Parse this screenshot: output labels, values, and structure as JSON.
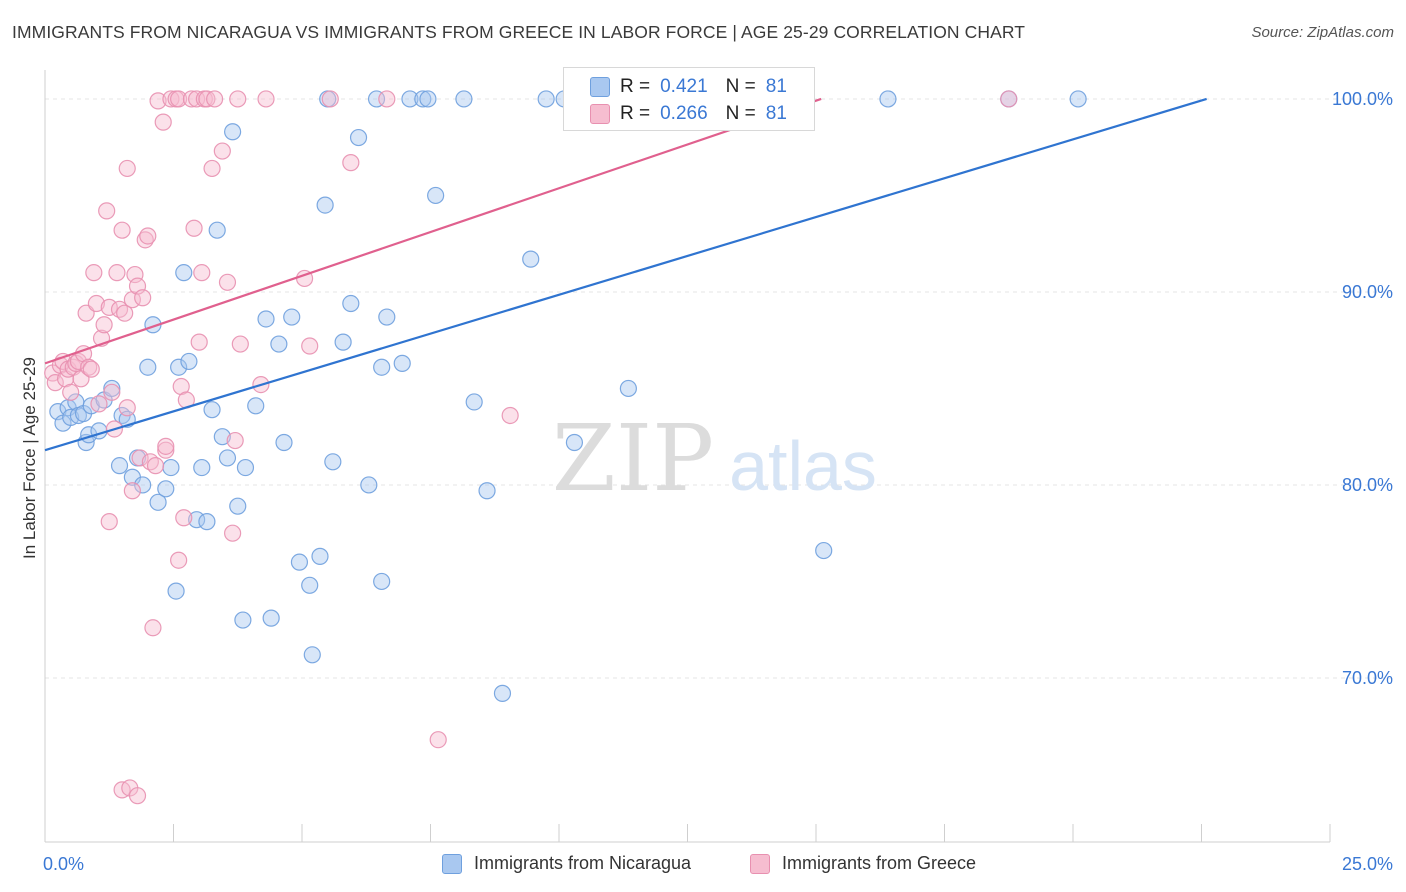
{
  "title": "IMMIGRANTS FROM NICARAGUA VS IMMIGRANTS FROM GREECE IN LABOR FORCE | AGE 25-29 CORRELATION CHART",
  "source": "Source: ZipAtlas.com",
  "watermark": {
    "zip": "ZIP",
    "atlas": "atlas"
  },
  "stats_box": {
    "rows": [
      {
        "r_label": "R =",
        "r_value": "0.421",
        "n_label": "N =",
        "n_value": "81",
        "color": "#a9c8f0",
        "border": "#6fa0de"
      },
      {
        "r_label": "R =",
        "r_value": "0.266",
        "n_label": "N =",
        "n_value": "81",
        "color": "#f6bdd0",
        "border": "#e890b0"
      }
    ]
  },
  "legend": [
    {
      "label": "Immigrants from Nicaragua",
      "color": "#a9c8f0",
      "border": "#6fa0de"
    },
    {
      "label": "Immigrants from Greece",
      "color": "#f6bdd0",
      "border": "#e890b0"
    }
  ],
  "chart_data": {
    "type": "scatter",
    "title": "IMMIGRANTS FROM NICARAGUA VS IMMIGRANTS FROM GREECE IN LABOR FORCE | AGE 25-29 CORRELATION CHART",
    "xlabel": "",
    "ylabel": "In Labor Force | Age 25-29",
    "xlim": [
      0,
      25
    ],
    "ylim": [
      61.5,
      101.5
    ],
    "x_tick_labels": [
      "0.0%",
      "25.0%"
    ],
    "y_ticks": [
      70,
      80,
      90,
      100
    ],
    "y_tick_labels": [
      "70.0%",
      "80.0%",
      "90.0%",
      "100.0%"
    ],
    "series": [
      {
        "name": "Immigrants from Nicaragua",
        "color": "#6fa0de",
        "fill": "#a9c8f0",
        "trend_color": "#2f74d0",
        "trend": {
          "x0": 0,
          "y0": 81.8,
          "x1": 22.6,
          "y1": 100.0
        },
        "points": [
          [
            0.25,
            83.8
          ],
          [
            0.35,
            83.2
          ],
          [
            0.45,
            84.0
          ],
          [
            0.5,
            83.5
          ],
          [
            0.6,
            84.3
          ],
          [
            0.65,
            83.6
          ],
          [
            0.75,
            83.7
          ],
          [
            0.8,
            82.2
          ],
          [
            0.85,
            82.6
          ],
          [
            0.9,
            84.1
          ],
          [
            1.05,
            82.8
          ],
          [
            1.15,
            84.4
          ],
          [
            1.3,
            85.0
          ],
          [
            1.45,
            81.0
          ],
          [
            1.5,
            83.6
          ],
          [
            1.6,
            83.4
          ],
          [
            1.7,
            80.4
          ],
          [
            1.8,
            81.4
          ],
          [
            1.9,
            80.0
          ],
          [
            2.0,
            86.1
          ],
          [
            2.1,
            88.3
          ],
          [
            2.2,
            79.1
          ],
          [
            2.35,
            79.8
          ],
          [
            2.45,
            80.9
          ],
          [
            2.55,
            74.5
          ],
          [
            2.6,
            86.1
          ],
          [
            2.7,
            91.0
          ],
          [
            2.8,
            86.4
          ],
          [
            2.95,
            78.2
          ],
          [
            3.05,
            80.9
          ],
          [
            3.15,
            78.1
          ],
          [
            3.25,
            83.9
          ],
          [
            3.35,
            93.2
          ],
          [
            3.45,
            82.5
          ],
          [
            3.55,
            81.4
          ],
          [
            3.65,
            98.3
          ],
          [
            3.75,
            78.9
          ],
          [
            3.85,
            73.0
          ],
          [
            3.9,
            80.9
          ],
          [
            4.1,
            84.1
          ],
          [
            4.3,
            88.6
          ],
          [
            4.4,
            73.1
          ],
          [
            4.55,
            87.3
          ],
          [
            4.65,
            82.2
          ],
          [
            4.8,
            88.7
          ],
          [
            4.95,
            76.0
          ],
          [
            5.15,
            74.8
          ],
          [
            5.2,
            71.2
          ],
          [
            5.35,
            76.3
          ],
          [
            5.45,
            94.5
          ],
          [
            5.5,
            100.0
          ],
          [
            5.6,
            81.2
          ],
          [
            5.8,
            87.4
          ],
          [
            5.95,
            89.4
          ],
          [
            6.1,
            98.0
          ],
          [
            6.3,
            80.0
          ],
          [
            6.45,
            100.0
          ],
          [
            6.55,
            75.0
          ],
          [
            6.55,
            86.1
          ],
          [
            6.65,
            88.7
          ],
          [
            6.95,
            86.3
          ],
          [
            7.1,
            100.0
          ],
          [
            7.35,
            100.0
          ],
          [
            7.45,
            100.0
          ],
          [
            7.6,
            95.0
          ],
          [
            8.15,
            100.0
          ],
          [
            8.35,
            84.3
          ],
          [
            8.6,
            79.7
          ],
          [
            8.9,
            69.2
          ],
          [
            9.45,
            91.7
          ],
          [
            9.75,
            100.0
          ],
          [
            10.1,
            100.0
          ],
          [
            10.3,
            82.2
          ],
          [
            11.35,
            85.0
          ],
          [
            15.15,
            76.6
          ],
          [
            16.4,
            100.0
          ],
          [
            18.75,
            100.0
          ],
          [
            20.1,
            100.0
          ]
        ]
      },
      {
        "name": "Immigrants from Greece",
        "color": "#e890b0",
        "fill": "#f6bdd0",
        "trend_color": "#e0608e",
        "trend": {
          "x0": 0,
          "y0": 86.3,
          "x1": 15.1,
          "y1": 100.0
        },
        "points": [
          [
            0.15,
            85.8
          ],
          [
            0.2,
            85.3
          ],
          [
            0.3,
            86.2
          ],
          [
            0.35,
            86.4
          ],
          [
            0.4,
            85.5
          ],
          [
            0.45,
            86.0
          ],
          [
            0.5,
            84.8
          ],
          [
            0.55,
            86.1
          ],
          [
            0.6,
            86.3
          ],
          [
            0.65,
            86.4
          ],
          [
            0.7,
            85.5
          ],
          [
            0.75,
            86.8
          ],
          [
            0.8,
            88.9
          ],
          [
            0.85,
            86.1
          ],
          [
            0.9,
            86.0
          ],
          [
            0.95,
            91.0
          ],
          [
            1.0,
            89.4
          ],
          [
            1.05,
            84.2
          ],
          [
            1.1,
            87.6
          ],
          [
            1.15,
            88.3
          ],
          [
            1.2,
            94.2
          ],
          [
            1.25,
            89.2
          ],
          [
            1.25,
            78.1
          ],
          [
            1.3,
            84.8
          ],
          [
            1.35,
            82.9
          ],
          [
            1.4,
            91.0
          ],
          [
            1.45,
            89.1
          ],
          [
            1.5,
            93.2
          ],
          [
            1.55,
            88.9
          ],
          [
            1.6,
            84.0
          ],
          [
            1.6,
            96.4
          ],
          [
            1.7,
            89.6
          ],
          [
            1.7,
            79.7
          ],
          [
            1.75,
            90.9
          ],
          [
            1.8,
            90.3
          ],
          [
            1.85,
            81.4
          ],
          [
            1.9,
            89.7
          ],
          [
            1.95,
            92.7
          ],
          [
            2.0,
            92.9
          ],
          [
            2.05,
            81.2
          ],
          [
            2.1,
            72.6
          ],
          [
            2.15,
            81.0
          ],
          [
            2.2,
            99.9
          ],
          [
            2.3,
            98.8
          ],
          [
            2.35,
            81.8
          ],
          [
            2.45,
            100.0
          ],
          [
            2.55,
            100.0
          ],
          [
            2.6,
            100.0
          ],
          [
            2.6,
            76.1
          ],
          [
            2.65,
            85.1
          ],
          [
            2.7,
            78.3
          ],
          [
            2.75,
            84.4
          ],
          [
            2.85,
            100.0
          ],
          [
            2.9,
            93.3
          ],
          [
            2.95,
            100.0
          ],
          [
            3.0,
            87.4
          ],
          [
            3.05,
            91.0
          ],
          [
            3.1,
            100.0
          ],
          [
            3.15,
            100.0
          ],
          [
            3.25,
            96.4
          ],
          [
            3.3,
            100.0
          ],
          [
            3.45,
            97.3
          ],
          [
            3.55,
            90.5
          ],
          [
            3.65,
            77.5
          ],
          [
            3.7,
            82.3
          ],
          [
            3.75,
            100.0
          ],
          [
            3.8,
            87.3
          ],
          [
            4.2,
            85.2
          ],
          [
            4.3,
            100.0
          ],
          [
            5.05,
            90.7
          ],
          [
            5.15,
            87.2
          ],
          [
            5.55,
            100.0
          ],
          [
            5.95,
            96.7
          ],
          [
            6.65,
            100.0
          ],
          [
            7.65,
            66.8
          ],
          [
            9.05,
            83.6
          ],
          [
            18.75,
            100.0
          ],
          [
            1.5,
            64.2
          ],
          [
            1.65,
            64.3
          ],
          [
            1.8,
            63.9
          ],
          [
            2.35,
            82.0
          ]
        ]
      }
    ]
  }
}
